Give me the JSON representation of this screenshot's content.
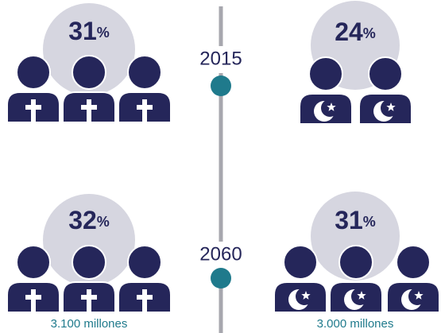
{
  "timeline": {
    "years": [
      "2015",
      "2060"
    ]
  },
  "panels": [
    {
      "group": "christian",
      "year": "2015",
      "value": "31",
      "unit": "%"
    },
    {
      "group": "muslim",
      "year": "2015",
      "value": "24",
      "unit": "%"
    },
    {
      "group": "christian",
      "year": "2060",
      "value": "32",
      "unit": "%",
      "caption": "3.100 millones"
    },
    {
      "group": "muslim",
      "year": "2060",
      "value": "31",
      "unit": "%",
      "caption": "3.000 millones"
    }
  ]
}
